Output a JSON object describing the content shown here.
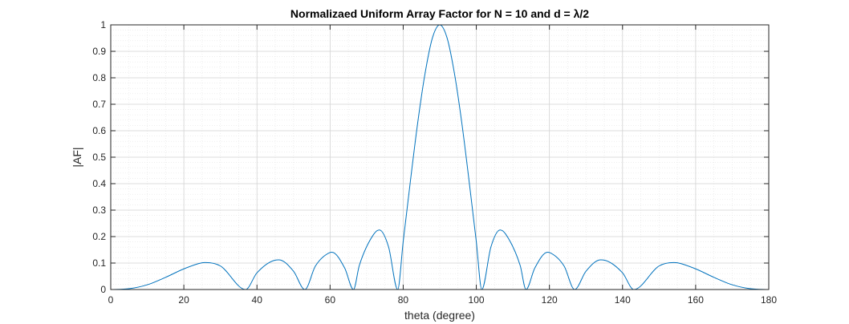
{
  "chart_data": {
    "type": "line",
    "title": "Normalizaed  Uniform Array Factor for N = 10 and d = λ/2",
    "xlabel": "theta (degree)",
    "ylabel": "|AF|",
    "xlim": [
      0,
      180
    ],
    "ylim": [
      0,
      1
    ],
    "x_ticks": [
      "0",
      "20",
      "40",
      "60",
      "80",
      "100",
      "120",
      "140",
      "160",
      "180"
    ],
    "y_ticks": [
      "0",
      "0.1",
      "0.2",
      "0.3",
      "0.4",
      "0.5",
      "0.6",
      "0.7",
      "0.8",
      "0.9",
      "1"
    ],
    "grid": true,
    "minor_grid": true,
    "series": [
      {
        "color": "#0072BD",
        "x": [
          0,
          5,
          10,
          15,
          20,
          25,
          26,
          30,
          36.9,
          40,
          45,
          46,
          50,
          53.1,
          56,
          60,
          60.5,
          64,
          66.4,
          68,
          72,
          73.5,
          76,
          78.5,
          80,
          82,
          84,
          86,
          88,
          90,
          92,
          94,
          96,
          98,
          100,
          101.5,
          104,
          106.5,
          108,
          112,
          113.6,
          116,
          119.5,
          120,
          124,
          126.9,
          130,
          134,
          135,
          140,
          143.1,
          150,
          154,
          155,
          160,
          165,
          170,
          175,
          180
        ],
        "y": [
          0,
          0.003,
          0.018,
          0.046,
          0.078,
          0.101,
          0.102,
          0.089,
          0,
          0.063,
          0.111,
          0.112,
          0.069,
          0,
          0.089,
          0.14,
          0.141,
          0.081,
          0,
          0.091,
          0.21,
          0.225,
          0.161,
          0,
          0.181,
          0.413,
          0.633,
          0.818,
          0.951,
          1,
          0.951,
          0.818,
          0.633,
          0.413,
          0.181,
          0,
          0.161,
          0.225,
          0.21,
          0.091,
          0,
          0.081,
          0.141,
          0.14,
          0.089,
          0,
          0.069,
          0.112,
          0.111,
          0.063,
          0,
          0.089,
          0.102,
          0.101,
          0.078,
          0.046,
          0.018,
          0.003,
          0
        ]
      }
    ]
  }
}
